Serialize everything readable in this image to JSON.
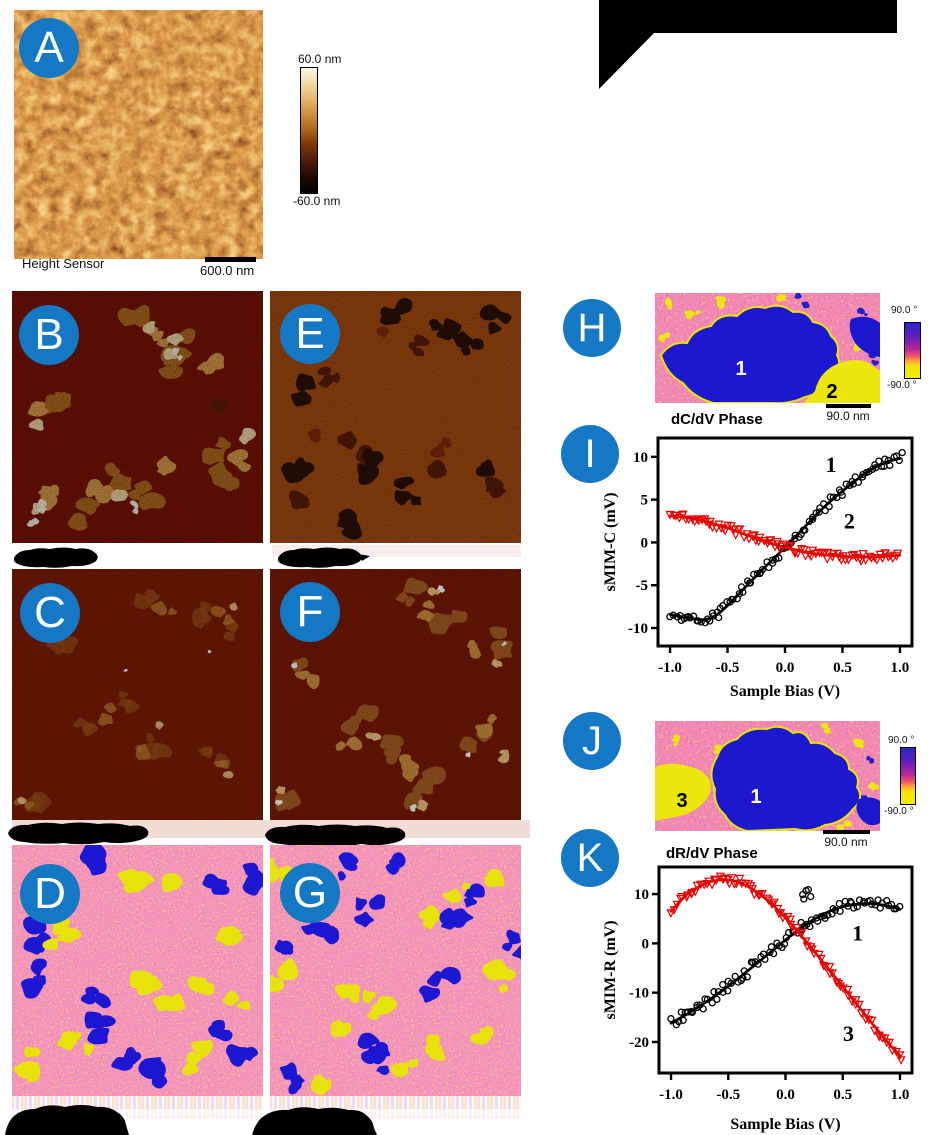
{
  "panels": {
    "A": {
      "letter": "A",
      "caption": "Height Sensor",
      "scalebar_label": "600.0 nm",
      "colorbar_top": "60.0 nm",
      "colorbar_bottom": "-60.0 nm"
    },
    "B": {
      "letter": "B"
    },
    "C": {
      "letter": "C"
    },
    "D": {
      "letter": "D"
    },
    "E": {
      "letter": "E"
    },
    "F": {
      "letter": "F"
    },
    "G": {
      "letter": "G"
    },
    "H": {
      "letter": "H",
      "title": "dC/dV Phase",
      "scalebar_label": "90.0 nm",
      "colorbar_top": "90.0 °",
      "colorbar_bottom": "-90.0 °",
      "region_labels": [
        "1",
        "2"
      ]
    },
    "I": {
      "letter": "I"
    },
    "J": {
      "letter": "J",
      "title": "dR/dV Phase",
      "scalebar_label": "90.0 nm",
      "colorbar_top": "90.0 °",
      "colorbar_bottom": "-90.0 °",
      "region_labels": [
        "3",
        "1"
      ]
    },
    "K": {
      "letter": "K"
    }
  },
  "colors": {
    "badge": "#1478c4",
    "phase_blue": "#1b18cf",
    "phase_yellow": "#ece60c",
    "series_black": "#000000",
    "series_red": "#e60000"
  },
  "chart_data": [
    {
      "id": "I",
      "type": "scatter",
      "title": "",
      "xlabel": "Sample Bias (V)",
      "ylabel": "sMIM-C (mV)",
      "xlim": [
        -1.105,
        1.105
      ],
      "ylim": [
        -12.1,
        12.2
      ],
      "xticks": [
        -1,
        -0.5,
        0,
        0.5,
        1
      ],
      "xtick_labels": [
        "-1.0",
        "-0.5",
        "0.0",
        "0.5",
        "1.0"
      ],
      "yticks": [
        10,
        5,
        0,
        -5,
        -10
      ],
      "ytick_labels": [
        "10",
        "5",
        "0",
        "-5",
        "-10"
      ],
      "grid": false,
      "legend": "none",
      "frame": {
        "l": 58,
        "t": 8,
        "r": 312,
        "b": 216
      },
      "size": [
        350,
        272
      ],
      "series": [
        {
          "name": "1",
          "color": "#000000",
          "marker": "circle",
          "label_at": [
            0.4,
            8.2
          ],
          "jitter": 0.55,
          "n_scatter": 92,
          "x": [
            -1,
            -0.9,
            -0.8,
            -0.7,
            -0.6,
            -0.5,
            -0.4,
            -0.3,
            -0.2,
            -0.1,
            0,
            0.1,
            0.2,
            0.3,
            0.4,
            0.5,
            0.6,
            0.7,
            0.8,
            0.9,
            1
          ],
          "y": [
            -8.4,
            -8.7,
            -8.9,
            -9.1,
            -8.6,
            -7.4,
            -6.0,
            -4.6,
            -3.2,
            -1.9,
            -0.6,
            0.8,
            2.2,
            3.6,
            4.9,
            6.0,
            7.1,
            8.1,
            8.9,
            9.5,
            9.8
          ],
          "extra_points": [
            [
              1.02,
              10.5
            ]
          ]
        },
        {
          "name": "2",
          "color": "#e60000",
          "marker": "triangle",
          "label_at": [
            0.56,
            1.6
          ],
          "jitter": 0.45,
          "n_scatter": 92,
          "x": [
            -1,
            -0.9,
            -0.8,
            -0.7,
            -0.6,
            -0.5,
            -0.4,
            -0.3,
            -0.2,
            -0.1,
            0,
            0.1,
            0.2,
            0.3,
            0.4,
            0.5,
            0.6,
            0.7,
            0.8,
            0.9,
            1
          ],
          "y": [
            3.1,
            3.0,
            2.8,
            2.5,
            2.1,
            1.7,
            1.2,
            0.7,
            0.2,
            -0.2,
            -0.6,
            -0.9,
            -1.2,
            -1.4,
            -1.5,
            -1.6,
            -1.7,
            -1.7,
            -1.7,
            -1.6,
            -1.5
          ],
          "extra_points": []
        }
      ]
    },
    {
      "id": "K",
      "type": "scatter",
      "title": "",
      "xlabel": "Sample Bias (V)",
      "ylabel": "sMIM-R (mV)",
      "xlim": [
        -1.105,
        1.105
      ],
      "ylim": [
        -26.3,
        15.5
      ],
      "xticks": [
        -1,
        -0.5,
        0,
        0.5,
        1
      ],
      "xtick_labels": [
        "-1.0",
        "-0.5",
        "0.0",
        "0.5",
        "1.0"
      ],
      "yticks": [
        10,
        0,
        -10,
        -20
      ],
      "ytick_labels": [
        "10",
        "0",
        "-10",
        "-20"
      ],
      "grid": false,
      "legend": "none",
      "frame": {
        "l": 59,
        "t": 9,
        "r": 312,
        "b": 215
      },
      "size": [
        350,
        277
      ],
      "series": [
        {
          "name": "1",
          "color": "#000000",
          "marker": "circle",
          "label_at": [
            0.63,
            0.6
          ],
          "jitter": 1.2,
          "n_scatter": 88,
          "x": [
            -1,
            -0.9,
            -0.8,
            -0.7,
            -0.6,
            -0.5,
            -0.4,
            -0.3,
            -0.2,
            -0.1,
            0,
            0.1,
            0.2,
            0.3,
            0.4,
            0.5,
            0.6,
            0.7,
            0.8,
            0.9,
            1
          ],
          "y": [
            -16.2,
            -14.9,
            -13.5,
            -12.0,
            -10.4,
            -8.7,
            -6.9,
            -5.0,
            -3.1,
            -1.2,
            0.7,
            2.5,
            4.2,
            5.6,
            6.7,
            7.5,
            7.9,
            8.1,
            8.0,
            7.6,
            6.9
          ],
          "extra_points": [
            [
              0.15,
              9.9
            ],
            [
              0.18,
              10.7
            ],
            [
              0.2,
              10.9
            ],
            [
              0.22,
              9.5
            ],
            [
              0.16,
              9.0
            ]
          ]
        },
        {
          "name": "3",
          "color": "#e60000",
          "marker": "triangle",
          "label_at": [
            0.55,
            -19.8
          ],
          "jitter": 0.85,
          "n_scatter": 88,
          "x": [
            -1,
            -0.9,
            -0.8,
            -0.7,
            -0.6,
            -0.5,
            -0.4,
            -0.3,
            -0.2,
            -0.1,
            0,
            0.1,
            0.2,
            0.3,
            0.4,
            0.5,
            0.6,
            0.7,
            0.8,
            0.9,
            1
          ],
          "y": [
            6.5,
            9.2,
            11.0,
            12.2,
            12.9,
            13.0,
            12.4,
            11.2,
            9.6,
            7.6,
            5.2,
            2.6,
            -0.2,
            -3.0,
            -5.9,
            -8.8,
            -11.7,
            -14.6,
            -17.5,
            -20.3,
            -22.8
          ],
          "extra_points": [
            [
              1.01,
              -23.6
            ]
          ]
        }
      ]
    }
  ]
}
